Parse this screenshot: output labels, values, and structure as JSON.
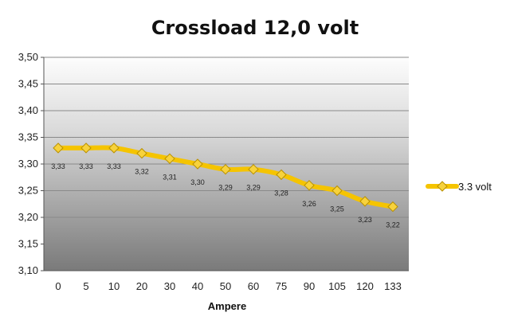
{
  "chart_data": {
    "type": "line",
    "title": "Crossload 12,0 volt",
    "xlabel": "Ampere",
    "ylabel": "",
    "categories": [
      "0",
      "5",
      "10",
      "20",
      "30",
      "40",
      "50",
      "60",
      "75",
      "90",
      "105",
      "120",
      "133"
    ],
    "ylim": [
      3.1,
      3.5
    ],
    "yticks": [
      "3,10",
      "3,15",
      "3,20",
      "3,25",
      "3,30",
      "3,35",
      "3,40",
      "3,45",
      "3,50"
    ],
    "grid": true,
    "legend_position": "right",
    "series": [
      {
        "name": "3.3 volt",
        "color": "#F5C400",
        "marker": "diamond",
        "values": [
          3.33,
          3.33,
          3.33,
          3.32,
          3.31,
          3.3,
          3.29,
          3.29,
          3.28,
          3.26,
          3.25,
          3.23,
          3.22
        ],
        "labels": [
          "3,33",
          "3,33",
          "3,33",
          "3,32",
          "3,31",
          "3,30",
          "3,29",
          "3,29",
          "3,28",
          "3,26",
          "3,25",
          "3,23",
          "3,22"
        ]
      }
    ]
  }
}
